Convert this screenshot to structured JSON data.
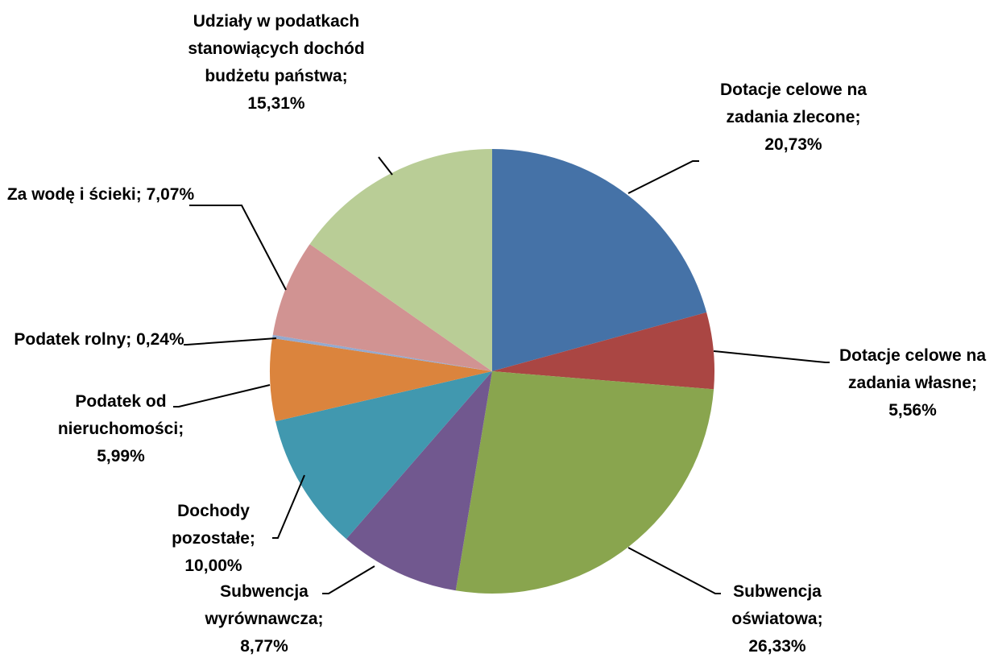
{
  "chart_data": {
    "type": "pie",
    "categories": [
      "Dotacje celowe na zadania zlecone",
      "Dotacje celowe na zadania własne",
      "Subwencja oświatowa",
      "Subwencja wyrównawcza",
      "Dochody pozostałe",
      "Podatek od nieruchomości",
      "Podatek rolny",
      "Za wodę i ścieki",
      "Udziały w podatkach stanowiących dochód budżetu państwa"
    ],
    "values": [
      20.73,
      5.56,
      26.33,
      8.77,
      10.0,
      5.99,
      0.24,
      7.07,
      15.31
    ],
    "value_labels": [
      "20,73%",
      "5,56%",
      "26,33%",
      "8,77%",
      "10,00%",
      "5,99%",
      "0,24%",
      "7,07%",
      "15,31%"
    ],
    "label_separator": "; ",
    "colors": [
      "#4572a7",
      "#aa4643",
      "#89a54e",
      "#71588f",
      "#4198af",
      "#db843d",
      "#93a9cf",
      "#d19392",
      "#b9cd96"
    ]
  }
}
